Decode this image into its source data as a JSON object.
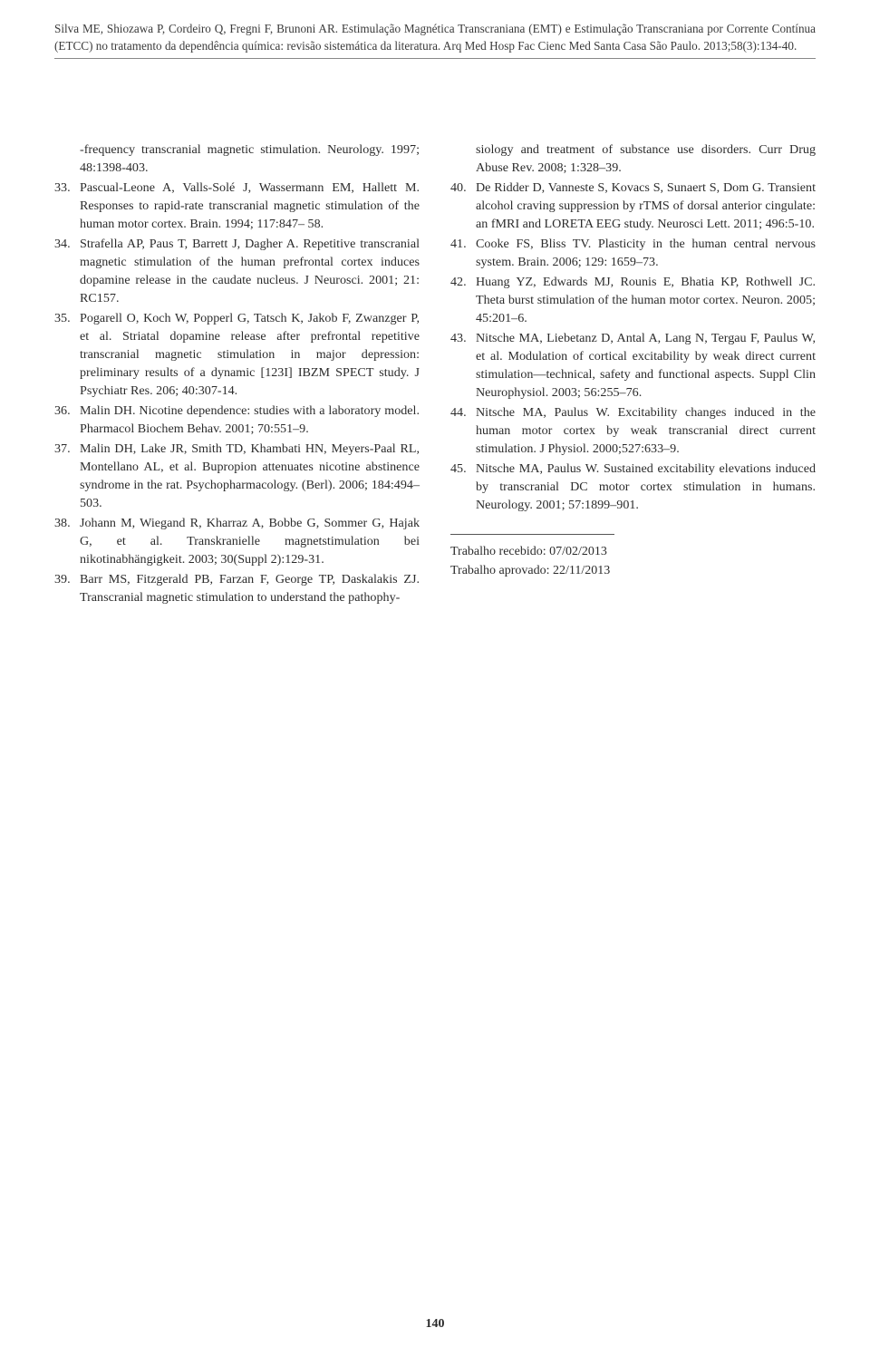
{
  "header": {
    "citation": "Silva ME, Shiozawa P, Cordeiro Q, Fregni F, Brunoni AR. Estimulação Magnética Transcraniana (EMT) e Estimulação Transcraniana por Corrente Contínua (ETCC) no tratamento da dependência química: revisão sistemática da literatura. Arq Med Hosp Fac Cienc Med Santa Casa São Paulo. 2013;58(3):134-40."
  },
  "left_column": {
    "continuation": "-frequency transcranial magnetic stimulation. Neurology. 1997; 48:1398-403.",
    "refs": [
      {
        "n": "33.",
        "t": "Pascual-Leone A, Valls-Solé J, Wassermann EM, Hallett M. Responses to rapid-rate transcranial magnetic stimulation of the human motor cortex. Brain. 1994; 117:847– 58."
      },
      {
        "n": "34.",
        "t": "Strafella AP, Paus T, Barrett J, Dagher A. Repetitive transcranial magnetic stimulation of the human prefrontal cortex induces dopamine release in the caudate nucleus. J Neurosci. 2001; 21: RC157."
      },
      {
        "n": "35.",
        "t": "Pogarell O, Koch W, Popperl G, Tatsch K, Jakob F, Zwanzger P, et al. Striatal dopamine release after prefrontal repetitive transcranial magnetic stimulation in major depression: preliminary results of a dynamic [123I] IBZM SPECT study. J Psychiatr Res. 206; 40:307-14."
      },
      {
        "n": "36.",
        "t": "Malin DH. Nicotine dependence: studies with a laboratory model. Pharmacol Biochem Behav. 2001; 70:551–9."
      },
      {
        "n": "37.",
        "t": "Malin DH, Lake JR, Smith TD, Khambati HN, Meyers-Paal RL, Montellano AL, et al. Bupropion attenuates nicotine abstinence syndrome in the rat. Psychopharmacology. (Berl). 2006; 184:494–503."
      },
      {
        "n": "38.",
        "t": "Johann M, Wiegand R, Kharraz A, Bobbe G, Sommer G, Hajak G, et al. Transkranielle magnetstimulation bei nikotinabhängigkeit. 2003; 30(Suppl 2):129-31."
      },
      {
        "n": "39.",
        "t": "Barr MS, Fitzgerald PB, Farzan F, George TP, Daskalakis ZJ. Transcranial magnetic stimulation to understand the pathophy-"
      }
    ]
  },
  "right_column": {
    "continuation": "siology and treatment of substance use disorders. Curr Drug Abuse Rev. 2008; 1:328–39.",
    "refs": [
      {
        "n": "40.",
        "t": "De Ridder D, Vanneste S, Kovacs S, Sunaert S, Dom G. Transient alcohol craving suppression by rTMS of dorsal anterior cingulate: an fMRI and LORETA EEG study. Neurosci Lett. 2011; 496:5-10."
      },
      {
        "n": "41.",
        "t": "Cooke FS, Bliss TV. Plasticity in the human central nervous system. Brain. 2006; 129: 1659–73."
      },
      {
        "n": "42.",
        "t": "Huang YZ, Edwards MJ, Rounis E, Bhatia KP, Rothwell JC. Theta burst stimulation of the human motor cortex. Neuron. 2005; 45:201–6."
      },
      {
        "n": "43.",
        "t": "Nitsche MA, Liebetanz D, Antal A, Lang N, Tergau F, Paulus W, et al. Modulation of cortical excitability by weak direct current stimulation—technical, safety and functional aspects. Suppl Clin Neurophysiol. 2003; 56:255–76."
      },
      {
        "n": "44.",
        "t": "Nitsche MA, Paulus W. Excitability changes induced in the human motor cortex by weak transcranial direct current stimulation. J Physiol. 2000;527:633–9."
      },
      {
        "n": "45.",
        "t": "Nitsche MA, Paulus W. Sustained excitability elevations induced by transcranial DC motor cortex stimulation in humans. Neurology. 2001; 57:1899–901."
      }
    ],
    "received": "Trabalho recebido: 07/02/2013",
    "approved": "Trabalho aprovado: 22/11/2013"
  },
  "page_number": "140"
}
